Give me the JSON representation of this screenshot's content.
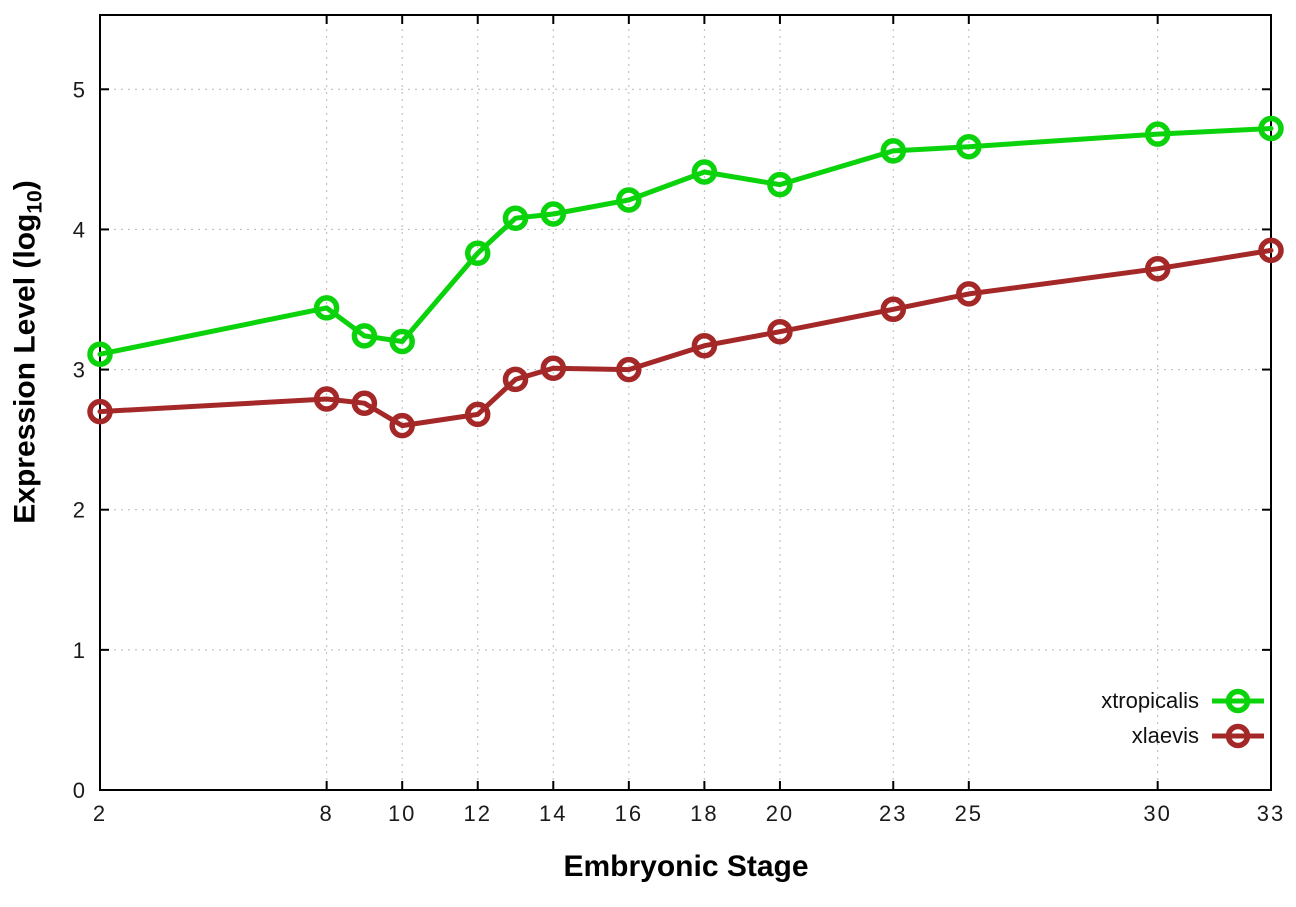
{
  "figure": {
    "background_color": "#ffffff"
  },
  "chart_data": {
    "type": "line",
    "title": "",
    "xlabel": "Embryonic Stage",
    "ylabel": "Expression Level (log10)",
    "ylabel_parts": {
      "main": "Expression Level (log",
      "sub": "10",
      "close": ")"
    },
    "xlim": [
      2,
      33
    ],
    "ylim": [
      0,
      5.53
    ],
    "x_ticks": [
      2,
      8,
      10,
      12,
      14,
      16,
      18,
      20,
      23,
      25,
      30,
      33
    ],
    "y_ticks": [
      0,
      1,
      2,
      3,
      4,
      5
    ],
    "grid": true,
    "legend_position": "inside-bottom-right",
    "style": {
      "grid_color": "#b8b8b8",
      "axis_color": "#000000",
      "tick_label_color": "#1a1a1a"
    },
    "series": [
      {
        "name": "xtropicalis",
        "color": "#0bd30b",
        "marker": "open-circle",
        "x": [
          2,
          8,
          9,
          10,
          12,
          13,
          14,
          16,
          18,
          20,
          23,
          25,
          30,
          33
        ],
        "y": [
          3.11,
          3.44,
          3.24,
          3.2,
          3.83,
          4.08,
          4.11,
          4.21,
          4.41,
          4.32,
          4.56,
          4.59,
          4.68,
          4.72
        ]
      },
      {
        "name": "xlaevis",
        "color": "#a52828",
        "marker": "open-circle",
        "x": [
          2,
          8,
          9,
          10,
          12,
          13,
          14,
          16,
          18,
          20,
          23,
          25,
          30,
          33
        ],
        "y": [
          2.7,
          2.79,
          2.76,
          2.6,
          2.68,
          2.93,
          3.01,
          3.0,
          3.17,
          3.27,
          3.43,
          3.54,
          3.72,
          3.85
        ]
      }
    ]
  }
}
